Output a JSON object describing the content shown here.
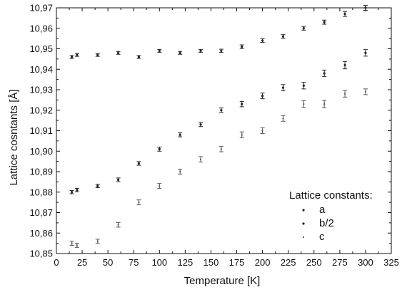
{
  "chart_data": {
    "type": "scatter",
    "title": "",
    "xlabel": "Temperature [K]",
    "ylabel": "Lattice cosntants [Å]",
    "xlim": [
      0,
      325
    ],
    "ylim": [
      10.85,
      10.97
    ],
    "x_ticks": [
      0,
      25,
      50,
      75,
      100,
      125,
      150,
      175,
      200,
      225,
      250,
      275,
      300,
      325
    ],
    "y_ticks": [
      10.85,
      10.86,
      10.87,
      10.88,
      10.89,
      10.9,
      10.91,
      10.92,
      10.93,
      10.94,
      10.95,
      10.96,
      10.97
    ],
    "x_tick_labels": [
      "0",
      "25",
      "50",
      "75",
      "100",
      "125",
      "150",
      "175",
      "200",
      "225",
      "250",
      "275",
      "300",
      "325"
    ],
    "y_tick_labels": [
      "10,85",
      "10,86",
      "10,87",
      "10,88",
      "10,89",
      "10,90",
      "10,91",
      "10,92",
      "10,93",
      "10,94",
      "10,95",
      "10,96",
      "10,97"
    ],
    "legend": {
      "title": "Lattice constants:",
      "position": "bottom-right"
    },
    "series": [
      {
        "name": "a",
        "color": "#222222",
        "x": [
          15,
          20,
          40,
          60,
          80,
          100,
          120,
          140,
          160,
          180,
          200,
          220,
          240,
          260,
          280,
          300
        ],
        "y": [
          10.946,
          10.947,
          10.947,
          10.948,
          10.946,
          10.949,
          10.948,
          10.949,
          10.949,
          10.951,
          10.954,
          10.956,
          10.96,
          10.963,
          10.967,
          10.97
        ],
        "err": [
          0.0007,
          0.0007,
          0.0007,
          0.0007,
          0.0007,
          0.0007,
          0.0007,
          0.0007,
          0.0008,
          0.0009,
          0.0009,
          0.0009,
          0.0009,
          0.001,
          0.0012,
          0.0012
        ]
      },
      {
        "name": "b/2",
        "color": "#222222",
        "x": [
          15,
          20,
          40,
          60,
          80,
          100,
          120,
          140,
          160,
          180,
          200,
          220,
          240,
          260,
          280,
          300
        ],
        "y": [
          10.88,
          10.881,
          10.883,
          10.886,
          10.894,
          10.901,
          10.908,
          10.913,
          10.92,
          10.923,
          10.927,
          10.931,
          10.932,
          10.938,
          10.942,
          10.948
        ],
        "err": [
          0.0008,
          0.0008,
          0.0008,
          0.0009,
          0.0009,
          0.001,
          0.001,
          0.001,
          0.0011,
          0.0013,
          0.0014,
          0.0015,
          0.0016,
          0.0016,
          0.0018,
          0.0016
        ]
      },
      {
        "name": "c",
        "color": "#555555",
        "x": [
          15,
          20,
          40,
          60,
          80,
          100,
          120,
          140,
          160,
          180,
          200,
          220,
          240,
          260,
          280,
          300
        ],
        "y": [
          10.855,
          10.854,
          10.856,
          10.864,
          10.875,
          10.883,
          10.89,
          10.896,
          10.901,
          10.908,
          10.91,
          10.916,
          10.923,
          10.923,
          10.928,
          10.929
        ],
        "err": [
          0.001,
          0.001,
          0.001,
          0.0011,
          0.0012,
          0.0012,
          0.0012,
          0.0013,
          0.0013,
          0.0014,
          0.0014,
          0.0014,
          0.0016,
          0.0018,
          0.0016,
          0.0014
        ]
      }
    ]
  }
}
